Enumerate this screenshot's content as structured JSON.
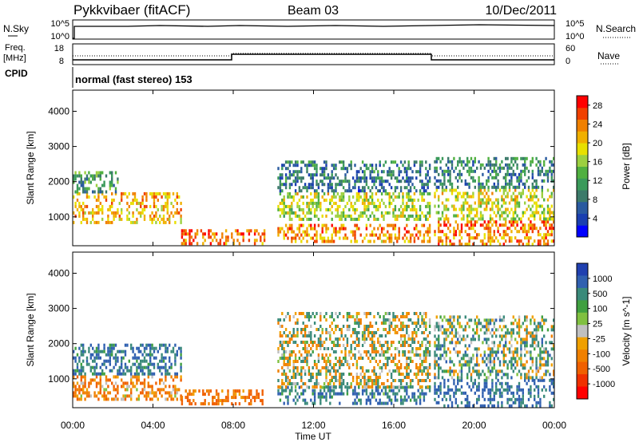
{
  "header": {
    "station": "Pykkvibaer (fitACF)",
    "beam": "Beam 03",
    "date": "10/Dec/2011"
  },
  "top_panels": {
    "nsky_label": "N.Sky",
    "nsky_ticks": [
      "10^5",
      "10^0"
    ],
    "nsearch_label": "N.Search",
    "nsearch_ticks": [
      "10^5",
      "10^0"
    ],
    "freq_label_1": "Freq.",
    "freq_label_2": "[MHz]",
    "freq_ticks": [
      "18",
      "8"
    ],
    "nave_label": "Nave",
    "nave_ticks": [
      "60",
      "0"
    ],
    "cpid_label": "CPID",
    "cpid_text": "normal (fast stereo) 153"
  },
  "colors": {
    "power_scale": [
      "#0000ff",
      "#1a3fb0",
      "#2a5aa0",
      "#3c7a6a",
      "#3a9a5a",
      "#50b040",
      "#9cd040",
      "#e8e000",
      "#f0b000",
      "#f08000",
      "#f04000",
      "#ff0000"
    ],
    "velocity_scale": [
      "#2040b0",
      "#3060b0",
      "#3a8a7a",
      "#40a040",
      "#80c040",
      "#c0c0c0",
      "#f0a000",
      "#f08000",
      "#f06000",
      "#f03000",
      "#ff0000"
    ]
  },
  "chart_data": [
    {
      "type": "heatmap",
      "title": "",
      "xlabel": "Time UT",
      "ylabel": "Slant Range [km]",
      "x_ticks": [
        "00:00",
        "04:00",
        "08:00",
        "12:00",
        "16:00",
        "20:00",
        "00:00"
      ],
      "y_ticks": [
        "1000",
        "2000",
        "3000",
        "4000"
      ],
      "ylim": [
        180,
        4600
      ],
      "colorbar_label": "Power [dB]",
      "colorbar_ticks": [
        "4",
        "8",
        "12",
        "16",
        "20",
        "24",
        "28"
      ],
      "colorbar_range": [
        0,
        30
      ],
      "bands": [
        {
          "t0": 0.0,
          "t1": 5.4,
          "r0": 800,
          "r1": 1700,
          "level": 22
        },
        {
          "t0": 0.0,
          "t1": 2.2,
          "r0": 1700,
          "r1": 2300,
          "level": 12
        },
        {
          "t0": 5.4,
          "t1": 9.6,
          "r0": 250,
          "r1": 650,
          "level": 26
        },
        {
          "t0": 10.2,
          "t1": 17.8,
          "r0": 300,
          "r1": 800,
          "level": 24
        },
        {
          "t0": 10.2,
          "t1": 17.8,
          "r0": 900,
          "r1": 1700,
          "level": 18
        },
        {
          "t0": 10.2,
          "t1": 17.8,
          "r0": 1700,
          "r1": 2600,
          "level": 9
        },
        {
          "t0": 18.0,
          "t1": 24.0,
          "r0": 250,
          "r1": 900,
          "level": 25
        },
        {
          "t0": 18.0,
          "t1": 24.0,
          "r0": 900,
          "r1": 1800,
          "level": 19
        },
        {
          "t0": 18.0,
          "t1": 24.0,
          "r0": 1800,
          "r1": 2700,
          "level": 10
        }
      ]
    },
    {
      "type": "heatmap",
      "title": "",
      "xlabel": "Time UT",
      "ylabel": "Slant Range [km]",
      "x_ticks": [
        "00:00",
        "04:00",
        "08:00",
        "12:00",
        "16:00",
        "20:00",
        "00:00"
      ],
      "y_ticks": [
        "1000",
        "2000",
        "3000",
        "4000"
      ],
      "ylim": [
        180,
        4600
      ],
      "colorbar_label": "Velocity [m s^-1]",
      "colorbar_ticks": [
        "1000",
        "500",
        "100",
        "25",
        "-25",
        "-100",
        "-500",
        "-1000"
      ],
      "bands": [
        {
          "t0": 0.0,
          "t1": 5.4,
          "r0": 400,
          "r1": 1100,
          "level": -200
        },
        {
          "t0": 0.0,
          "t1": 5.4,
          "r0": 1100,
          "r1": 2000,
          "level": 300
        },
        {
          "t0": 5.4,
          "t1": 9.6,
          "r0": 250,
          "r1": 700,
          "level": -300
        },
        {
          "t0": 10.2,
          "t1": 17.8,
          "r0": 300,
          "r1": 800,
          "level": 300
        },
        {
          "t0": 10.2,
          "t1": 17.8,
          "r0": 800,
          "r1": 2900,
          "level": 0
        },
        {
          "t0": 18.0,
          "t1": 24.0,
          "r0": 250,
          "r1": 1000,
          "level": 400
        },
        {
          "t0": 18.0,
          "t1": 24.0,
          "r0": 1000,
          "r1": 2800,
          "level": 100
        }
      ]
    }
  ]
}
